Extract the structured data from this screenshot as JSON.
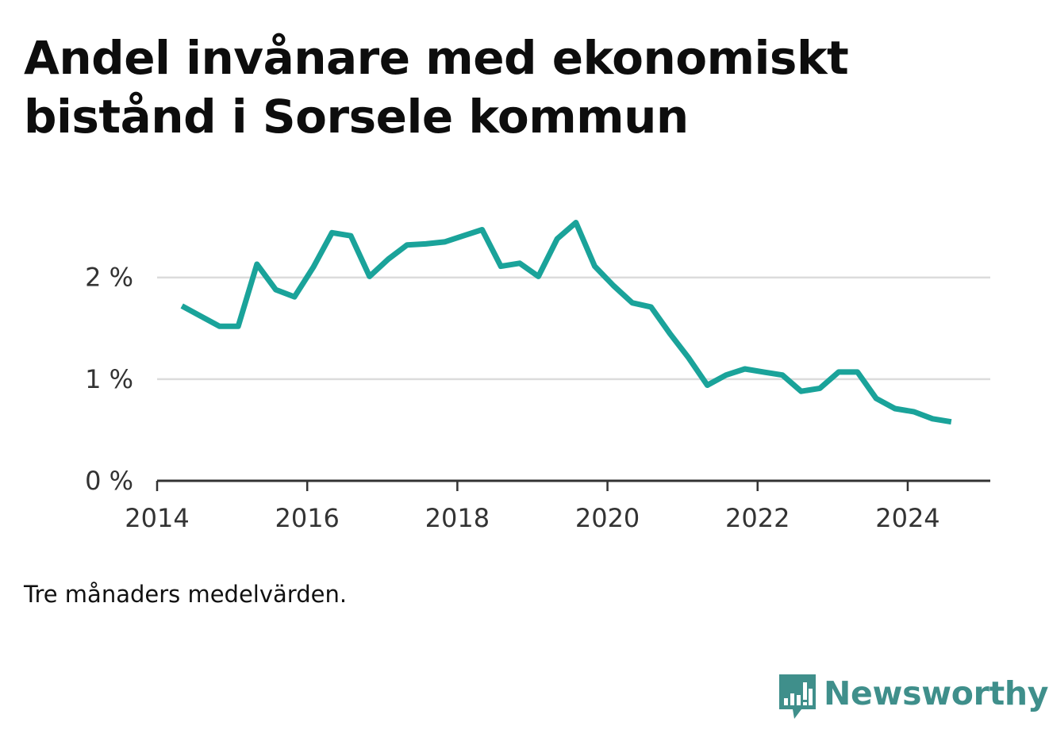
{
  "chart_data": {
    "type": "line",
    "title": [
      "Andel invånare med ekonomiskt",
      "bistånd i Sorsele kommun"
    ],
    "note": "Tre månaders medelvärden.",
    "x_ticks": [
      "2014",
      "2016",
      "2018",
      "2020",
      "2022",
      "2024"
    ],
    "y_ticks": [
      {
        "value": 0,
        "label": "0 %"
      },
      {
        "value": 1,
        "label": "1 %"
      },
      {
        "value": 2,
        "label": "2 %"
      }
    ],
    "xlim": [
      2014.0,
      2025.1
    ],
    "ylim": [
      0,
      2.7
    ],
    "grid": true,
    "line_color": "#1aa39a",
    "series": [
      {
        "x": [
          2014.33,
          2014.58,
          2014.83,
          2015.08,
          2015.33,
          2015.58,
          2015.83,
          2016.08,
          2016.33,
          2016.58,
          2016.83,
          2017.08,
          2017.33,
          2017.58,
          2017.83,
          2018.08,
          2018.33,
          2018.58,
          2018.83,
          2019.08,
          2019.33,
          2019.58,
          2019.83,
          2020.08,
          2020.33,
          2020.58,
          2020.83,
          2021.08,
          2021.33,
          2021.58,
          2021.83,
          2022.08,
          2022.33,
          2022.58,
          2022.83,
          2023.08,
          2023.33,
          2023.58,
          2023.83,
          2024.08,
          2024.33,
          2024.58
        ],
        "values": [
          1.72,
          1.62,
          1.52,
          1.52,
          2.13,
          1.88,
          1.81,
          2.1,
          2.44,
          2.41,
          2.01,
          2.18,
          2.32,
          2.33,
          2.35,
          2.41,
          2.47,
          2.11,
          2.14,
          2.01,
          2.38,
          2.54,
          2.11,
          1.92,
          1.75,
          1.71,
          1.45,
          1.21,
          0.94,
          1.04,
          1.1,
          1.07,
          1.04,
          0.88,
          0.91,
          1.07,
          1.07,
          0.81,
          0.71,
          0.68,
          0.61,
          0.58
        ]
      }
    ]
  },
  "brand": {
    "name": "Newsworthy",
    "icon": "newsworthy-logo-icon",
    "color": "#3f8f8b"
  }
}
